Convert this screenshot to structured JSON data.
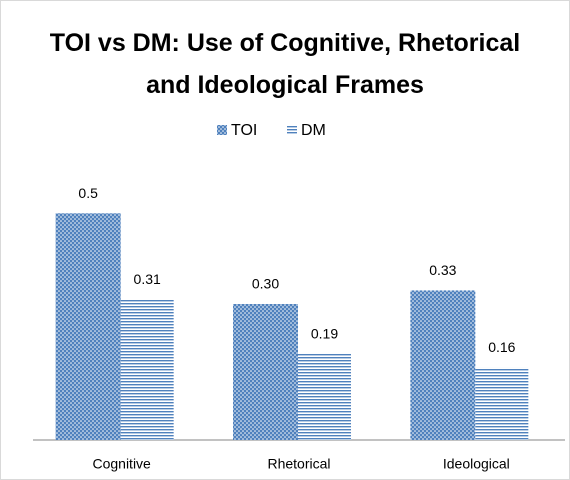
{
  "chart_data": {
    "type": "bar",
    "title": "TOI vs DM: Use of Cognitive, Rhetorical and Ideological Frames",
    "categories": [
      "Cognitive",
      "Rhetorical",
      "Ideological"
    ],
    "series": [
      {
        "name": "TOI",
        "color": "#4f81bd",
        "values": [
          0.5,
          0.3,
          0.33
        ],
        "value_labels": [
          "0.5",
          "0.30",
          "0.33"
        ]
      },
      {
        "name": "DM",
        "color": "#4f81bd",
        "values": [
          0.31,
          0.19,
          0.16
        ],
        "value_labels": [
          "0.31",
          "0.19",
          "0.16"
        ]
      }
    ],
    "ylim": [
      0,
      0.6
    ]
  }
}
